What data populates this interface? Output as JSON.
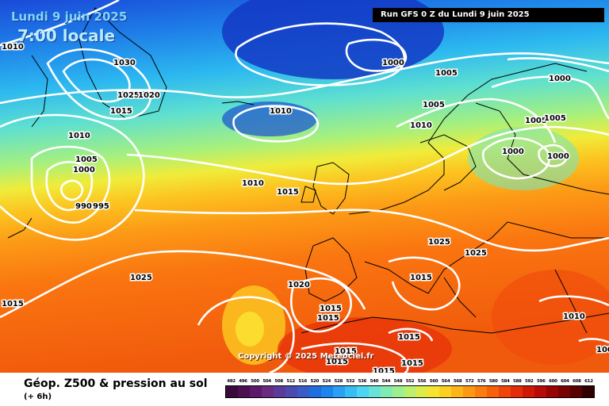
{
  "header": {
    "date_text": "Lundi 9 juin 2025",
    "time_text": "7:00 locale",
    "run_text": "Run GFS 0 Z du Lundi 9 juin 2025"
  },
  "copyright": "Copyright © 2025 Meteociel.fr",
  "isobar_labels": [
    "1010",
    "1030",
    "1025",
    "1020",
    "1015",
    "1010",
    "1005",
    "1000",
    "990",
    "995",
    "1000",
    "1005",
    "1010",
    "1005",
    "1005",
    "1010",
    "1000",
    "1005",
    "1000",
    "1000",
    "1010",
    "1015",
    "1025",
    "1025",
    "1015",
    "1025",
    "1020",
    "1015",
    "1015",
    "1015",
    "1015",
    "1015",
    "1010",
    "1015",
    "1015",
    "1015",
    "1000"
  ],
  "legend": {
    "title": "Géop. Z500 & pression au sol",
    "subtitle": "(+ 6h)",
    "values": [
      "492",
      "496",
      "500",
      "504",
      "508",
      "512",
      "516",
      "520",
      "524",
      "528",
      "532",
      "536",
      "540",
      "544",
      "548",
      "552",
      "556",
      "560",
      "564",
      "568",
      "572",
      "576",
      "580",
      "584",
      "588",
      "592",
      "596",
      "600",
      "604",
      "608",
      "612"
    ],
    "colors": [
      "#3a0a3a",
      "#4c1050",
      "#5e1a6a",
      "#6a2a82",
      "#5a3a9a",
      "#4a4ab0",
      "#3a5cc8",
      "#1e6ee0",
      "#1e84ee",
      "#2aa0f4",
      "#38bcf4",
      "#4cd4f0",
      "#66e4d8",
      "#80ecb4",
      "#9cf090",
      "#bcf06c",
      "#dcec48",
      "#f4e430",
      "#fcd020",
      "#fcb418",
      "#fc9814",
      "#fc7c10",
      "#f8600c",
      "#f0440a",
      "#e42c08",
      "#d01806",
      "#b80a06",
      "#980404",
      "#780202",
      "#580000",
      "#300000"
    ]
  }
}
